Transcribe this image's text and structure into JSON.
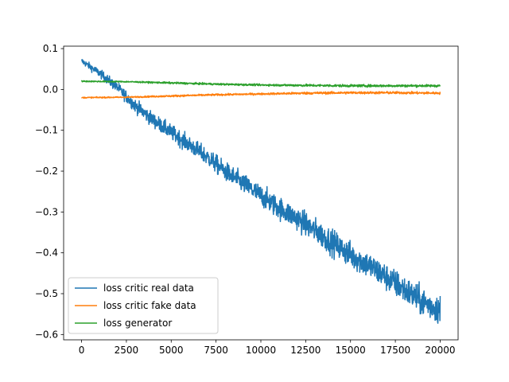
{
  "chart_data": {
    "type": "line",
    "title": "",
    "xlabel": "",
    "ylabel": "",
    "xlim": [
      -1000,
      21000
    ],
    "ylim": [
      -0.613,
      0.106
    ],
    "xticks": [
      0,
      2500,
      5000,
      7500,
      10000,
      12500,
      15000,
      17500,
      20000
    ],
    "xtick_labels": [
      "0",
      "2500",
      "5000",
      "7500",
      "10000",
      "12500",
      "15000",
      "17500",
      "20000"
    ],
    "yticks": [
      0.1,
      0.0,
      -0.1,
      -0.2,
      -0.3,
      -0.4,
      -0.5,
      -0.6
    ],
    "ytick_labels": [
      "0.1",
      "0.0",
      "−0.1",
      "−0.2",
      "−0.3",
      "−0.4",
      "−0.5",
      "−0.6"
    ],
    "grid": false,
    "legend_position": "lower-left",
    "series": [
      {
        "name": "loss critic real data",
        "color": "#1f77b4",
        "noisy": true,
        "x": [
          0,
          1000,
          2000,
          3000,
          4000,
          5000,
          6000,
          7000,
          8000,
          9000,
          10000,
          11000,
          12000,
          13000,
          14000,
          15000,
          16000,
          17000,
          18000,
          19000,
          20000
        ],
        "values": [
          0.07,
          0.04,
          0.005,
          -0.04,
          -0.075,
          -0.105,
          -0.135,
          -0.165,
          -0.2,
          -0.23,
          -0.26,
          -0.29,
          -0.315,
          -0.345,
          -0.375,
          -0.405,
          -0.43,
          -0.46,
          -0.49,
          -0.52,
          -0.54
        ],
        "noise": [
          0.005,
          0.007,
          0.009,
          0.011,
          0.012,
          0.013,
          0.014,
          0.015,
          0.016,
          0.017,
          0.018,
          0.019,
          0.02,
          0.021,
          0.022,
          0.022,
          0.023,
          0.023,
          0.024,
          0.024,
          0.025
        ]
      },
      {
        "name": "loss critic fake data",
        "color": "#ff7f0e",
        "noisy": true,
        "x": [
          0,
          2500,
          5000,
          7500,
          10000,
          12500,
          15000,
          17500,
          20000
        ],
        "values": [
          -0.02,
          -0.019,
          -0.016,
          -0.013,
          -0.011,
          -0.009,
          -0.008,
          -0.008,
          -0.009
        ],
        "noise": [
          0.001,
          0.001,
          0.0015,
          0.0015,
          0.0015,
          0.002,
          0.002,
          0.002,
          0.002
        ]
      },
      {
        "name": "loss generator",
        "color": "#2ca02c",
        "noisy": true,
        "x": [
          0,
          2500,
          5000,
          7500,
          10000,
          12500,
          15000,
          17500,
          20000
        ],
        "values": [
          0.02,
          0.019,
          0.016,
          0.013,
          0.011,
          0.01,
          0.009,
          0.009,
          0.009
        ],
        "noise": [
          0.001,
          0.001,
          0.0015,
          0.0015,
          0.0015,
          0.002,
          0.002,
          0.002,
          0.002
        ]
      }
    ]
  }
}
